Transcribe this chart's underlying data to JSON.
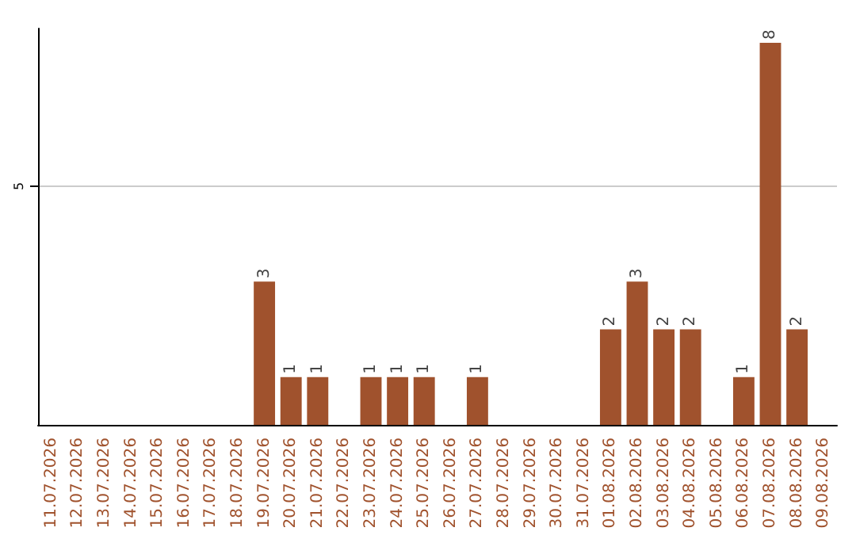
{
  "chart_data": {
    "type": "bar",
    "categories": [
      "11.07.2026",
      "12.07.2026",
      "13.07.2026",
      "14.07.2026",
      "15.07.2026",
      "16.07.2026",
      "17.07.2026",
      "18.07.2026",
      "19.07.2026",
      "20.07.2026",
      "21.07.2026",
      "22.07.2026",
      "23.07.2026",
      "24.07.2026",
      "25.07.2026",
      "26.07.2026",
      "27.07.2026",
      "28.07.2026",
      "29.07.2026",
      "30.07.2026",
      "31.07.2026",
      "01.08.2026",
      "02.08.2026",
      "03.08.2026",
      "04.08.2026",
      "05.08.2026",
      "06.08.2026",
      "07.08.2026",
      "08.08.2026",
      "09.08.2026"
    ],
    "values": [
      0,
      0,
      0,
      0,
      0,
      0,
      0,
      0,
      3,
      1,
      1,
      0,
      1,
      1,
      1,
      0,
      1,
      0,
      0,
      0,
      0,
      2,
      3,
      2,
      2,
      0,
      1,
      8,
      2,
      0
    ],
    "value_labels": [
      null,
      null,
      null,
      null,
      null,
      null,
      null,
      null,
      "3",
      "1",
      "1",
      null,
      "1",
      "1",
      "1",
      null,
      "1",
      null,
      null,
      null,
      null,
      "2",
      "3",
      "2",
      "2",
      null,
      "1",
      "8",
      "2",
      null
    ],
    "color": "#a0522d",
    "ylim": [
      0,
      8.3
    ],
    "yticks": [
      5
    ],
    "grid": "y"
  }
}
